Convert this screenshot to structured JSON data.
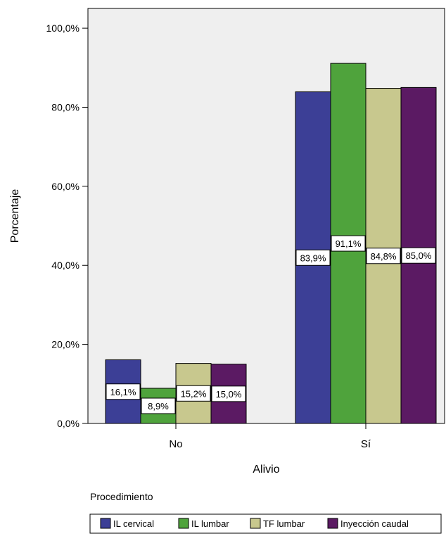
{
  "chart_data": {
    "type": "bar",
    "title": "",
    "xlabel": "Alivio",
    "ylabel": "Porcentaje",
    "categories": [
      "No",
      "Sí"
    ],
    "ylim": [
      0,
      105
    ],
    "yticks": [
      0,
      20,
      40,
      60,
      80,
      100
    ],
    "ytick_labels": [
      "0,0%",
      "20,0%",
      "40,0%",
      "60,0%",
      "80,0%",
      "100,0%"
    ],
    "grid": false,
    "legend": {
      "title": "Procedimiento",
      "placement": "bottom"
    },
    "series": [
      {
        "name": "IL cervical",
        "color": "#3c3f96",
        "values": [
          16.1,
          83.9
        ],
        "labels": [
          "16,1%",
          "83,9%"
        ]
      },
      {
        "name": "IL lumbar",
        "color": "#4fa33c",
        "values": [
          8.9,
          91.1
        ],
        "labels": [
          "8,9%",
          "91,1%"
        ]
      },
      {
        "name": "TF lumbar",
        "color": "#c8c88e",
        "values": [
          15.2,
          84.8
        ],
        "labels": [
          "15,2%",
          "84,8%"
        ]
      },
      {
        "name": "Inyección caudal",
        "color": "#5b1a63",
        "values": [
          15.0,
          85.0
        ],
        "labels": [
          "15,0%",
          "85,0%"
        ]
      }
    ],
    "plot_background": "#efefef"
  }
}
